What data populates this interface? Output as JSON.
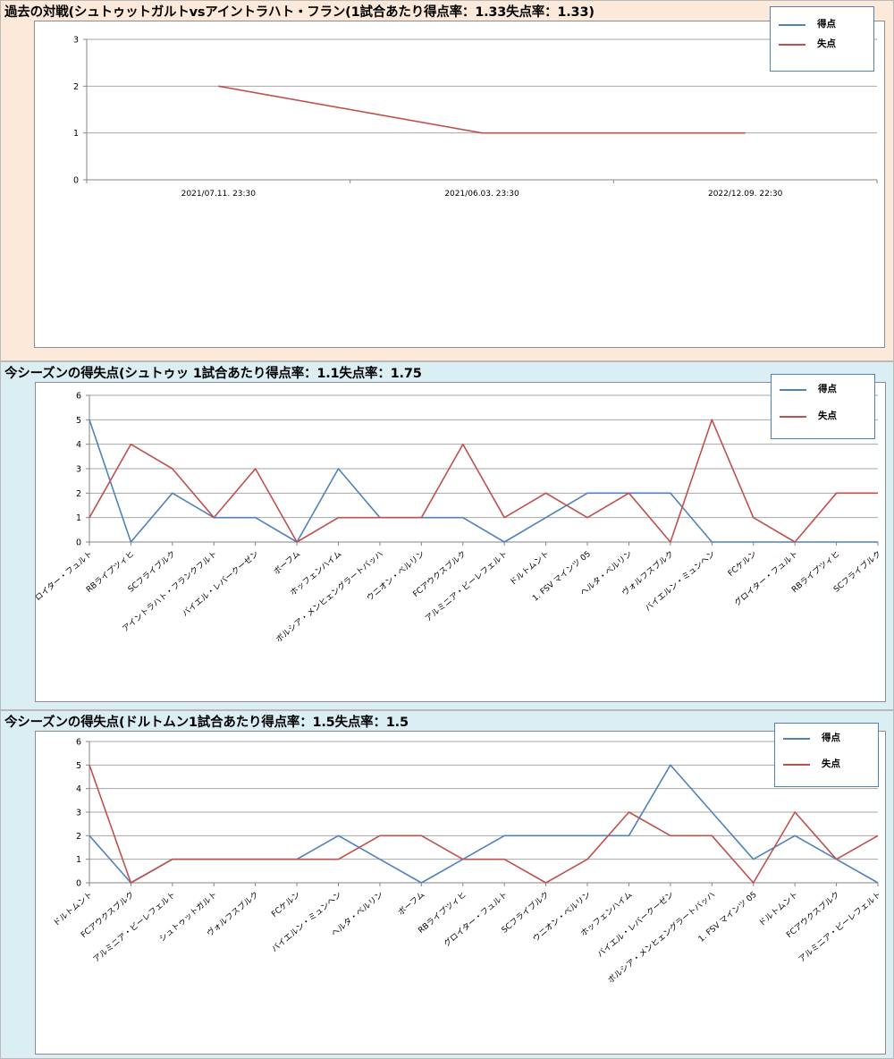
{
  "colors": {
    "goals": "#4f81bd",
    "conceded": "#c0504d",
    "grid": "#a6a6a6",
    "axis": "#868686"
  },
  "sections": [
    {
      "title": "過去の対戦(シュトゥットガルトvsアイントラハト・フラン(1試合あたり得点率：1.33失点率：1.33)",
      "background": "#fde9d9",
      "chart_data": {
        "type": "line",
        "title": "",
        "x": [
          "2021/07.11. 23:30",
          "2021/06.03. 23:30",
          "2022/12.09. 22:30"
        ],
        "ylim": [
          0,
          3
        ],
        "yticks": [
          0,
          1,
          2,
          3
        ],
        "grid": true,
        "legend": "top-right",
        "series": [
          {
            "name": "得点",
            "values": [
              null,
              null,
              null
            ]
          },
          {
            "name": "失点",
            "values": [
              2,
              1,
              1
            ]
          }
        ]
      }
    },
    {
      "title": "今シーズンの得失点(シュトゥッ 1試合あたり得点率：1.1失点率：1.75",
      "background": "#daeef3",
      "chart_data": {
        "type": "line",
        "title": "",
        "x": [
          "グロイター・フュルト",
          "RBライプツィヒ",
          "SCフライブルク",
          "アイントラハト・フランクフルト",
          "バイエル・レバークーゼン",
          "ボーフム",
          "ホッフェンハイム",
          "ボルシア・メンヒェングラートバッハ",
          "ウニオン・ベルリン",
          "FCアウクスブルク",
          "アルミニア・ビーレフェルト",
          "ドルトムント",
          "1. FSV マインツ 05",
          "ヘルタ・ベルリン",
          "ヴォルフスブルク",
          "バイエルン・ミュンヘン",
          "FCケルン",
          "グロイター・フュルト",
          "RBライプツィヒ",
          "SCフライブルク"
        ],
        "ylim": [
          0,
          6
        ],
        "yticks": [
          0,
          1,
          2,
          3,
          4,
          5,
          6
        ],
        "grid": true,
        "legend": "top-right",
        "series": [
          {
            "name": "得点",
            "values": [
              5,
              0,
              2,
              1,
              1,
              0,
              3,
              1,
              1,
              1,
              0,
              1,
              2,
              2,
              2,
              0,
              0,
              0,
              0,
              0
            ]
          },
          {
            "name": "失点",
            "values": [
              1,
              4,
              3,
              1,
              3,
              0,
              1,
              1,
              1,
              4,
              1,
              2,
              1,
              2,
              0,
              5,
              1,
              0,
              2,
              2
            ]
          }
        ]
      }
    },
    {
      "title": "今シーズンの得失点(ドルトムン1試合あたり得点率：1.5失点率：1.5",
      "background": "#daeef3",
      "chart_data": {
        "type": "line",
        "title": "",
        "x": [
          "ドルトムント",
          "FCアウクスブルク",
          "アルミニア・ビーレフェルト",
          "シュトゥットガルト",
          "ヴォルフスブルク",
          "FCケルン",
          "バイエルン・ミュンヘン",
          "ヘルタ・ベルリン",
          "ボーフム",
          "RBライプツィヒ",
          "グロイター・フュルト",
          "SCフライブルク",
          "ウニオン・ベルリン",
          "ホッフェンハイム",
          "バイエル・レバークーゼン",
          "ボルシア・メンヒェングラートバッハ",
          "1. FSV マインツ 05",
          "ドルトムント",
          "FCアウクスブルク",
          "アルミニア・ビーレフェルト"
        ],
        "ylim": [
          0,
          6
        ],
        "yticks": [
          0,
          1,
          2,
          3,
          4,
          5,
          6
        ],
        "grid": true,
        "legend": "top-right",
        "series": [
          {
            "name": "得点",
            "values": [
              2,
              0,
              1,
              1,
              1,
              1,
              2,
              1,
              0,
              1,
              2,
              2,
              2,
              2,
              5,
              3,
              1,
              2,
              1,
              0
            ]
          },
          {
            "name": "失点",
            "values": [
              5,
              0,
              1,
              1,
              1,
              1,
              1,
              2,
              2,
              1,
              1,
              0,
              1,
              3,
              2,
              2,
              0,
              3,
              1,
              2
            ]
          }
        ]
      }
    }
  ]
}
